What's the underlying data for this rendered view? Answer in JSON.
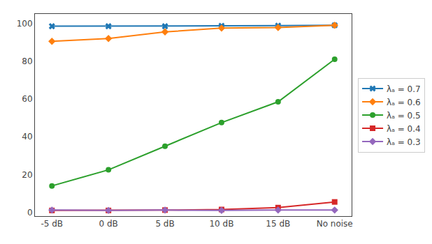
{
  "chart_data": {
    "type": "line",
    "categories": [
      "-5 dB",
      "0 dB",
      "5 dB",
      "10 dB",
      "15 dB",
      "No noise"
    ],
    "series": [
      {
        "name": "λₐ = 0.7",
        "color": "#1f77b4",
        "marker": "x",
        "values": [
          98.5,
          98.5,
          98.5,
          98.7,
          98.8,
          99.0
        ]
      },
      {
        "name": "λₐ = 0.6",
        "color": "#ff7f0e",
        "marker": "diamond",
        "values": [
          90.5,
          92.0,
          95.5,
          97.5,
          97.8,
          99.0
        ]
      },
      {
        "name": "λₐ = 0.5",
        "color": "#2ca02c",
        "marker": "circle",
        "values": [
          14.0,
          22.5,
          35.0,
          47.5,
          58.5,
          81.0
        ]
      },
      {
        "name": "λₐ = 0.4",
        "color": "#d62728",
        "marker": "square",
        "values": [
          1.0,
          1.0,
          1.2,
          1.5,
          2.5,
          5.5
        ]
      },
      {
        "name": "λₐ = 0.3",
        "color": "#9467bd",
        "marker": "diamond",
        "values": [
          1.2,
          1.0,
          1.2,
          1.0,
          1.2,
          1.2
        ]
      }
    ],
    "ylim": [
      -2,
      105
    ],
    "yticks": [
      0,
      20,
      40,
      60,
      80,
      100
    ],
    "grid": false,
    "legend": "right"
  }
}
